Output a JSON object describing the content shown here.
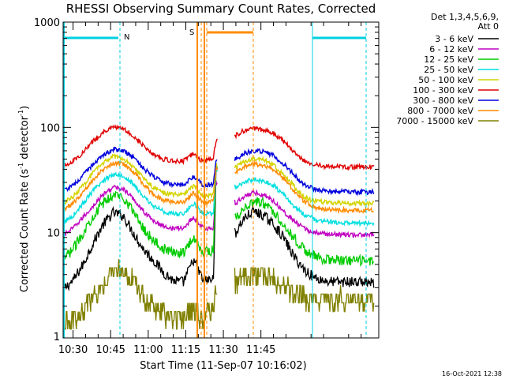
{
  "chart_data": {
    "type": "line",
    "title": "RHESSI Observing Summary Count Rates, Corrected",
    "xlabel": "Start Time (11-Sep-07 10:16:02)",
    "ylabel_main": "Corrected Count Rate (s",
    "ylabel_sup1": "-1",
    "ylabel_mid": " detector",
    "ylabel_sup2": "-1",
    "ylabel_end": ")",
    "y_scale": "log",
    "ylim": [
      1,
      1000
    ],
    "xlim_minutes": [
      10.0,
      136.0
    ],
    "x_tick_labels": [
      "10:30",
      "10:45",
      "11:00",
      "11:15",
      "11:30",
      "11:45"
    ],
    "y_tick_labels": [
      "1",
      "10",
      "100",
      "1000"
    ],
    "legend_header": [
      "Det 1,3,4,5,6,9,",
      "Att 0"
    ],
    "legend_placement": "right",
    "footer_date": "16-Oct-2021 12:38",
    "annotations": {
      "N": "N",
      "S": "S"
    },
    "gaps_minutes": [
      [
        71.5,
        78.5
      ]
    ],
    "series": [
      {
        "name": "3 - 6 keV",
        "color": "#000000",
        "x": [
          10,
          14,
          18,
          22,
          26,
          30,
          34,
          38,
          42,
          46,
          50,
          54,
          58,
          62,
          66,
          70,
          71,
          79,
          82,
          86,
          90,
          94,
          98,
          102,
          106,
          110,
          114,
          118,
          122,
          126,
          130,
          134
        ],
        "y": [
          2.9,
          3.5,
          5.0,
          8.0,
          12.0,
          15.5,
          14.5,
          10.0,
          7.0,
          5.5,
          4.2,
          3.5,
          3.4,
          5.5,
          3.5,
          3.6,
          40.0,
          10.0,
          13.5,
          16.0,
          14.5,
          12.0,
          9.0,
          6.0,
          4.5,
          3.8,
          3.5,
          3.4,
          3.4,
          3.4,
          3.4,
          3.3
        ]
      },
      {
        "name": "6 - 12 keV",
        "color": "#c000c0",
        "x": [
          10,
          14,
          18,
          22,
          26,
          30,
          34,
          38,
          42,
          46,
          50,
          54,
          58,
          62,
          66,
          70,
          71,
          79,
          82,
          86,
          90,
          94,
          98,
          102,
          106,
          110,
          114,
          118,
          122,
          126,
          130,
          134
        ],
        "y": [
          9.5,
          11.0,
          14.0,
          18.0,
          23.0,
          27.0,
          26.0,
          21.0,
          16.0,
          13.0,
          11.5,
          11.0,
          11.0,
          14.0,
          11.0,
          11.0,
          30.0,
          19.0,
          22.0,
          24.0,
          23.0,
          20.0,
          16.0,
          13.0,
          11.0,
          10.0,
          9.8,
          9.6,
          9.6,
          9.5,
          9.5,
          9.5
        ]
      },
      {
        "name": "12 - 25 keV",
        "color": "#00cc00",
        "x": [
          10,
          14,
          18,
          22,
          26,
          30,
          34,
          38,
          42,
          46,
          50,
          54,
          58,
          62,
          66,
          70,
          71,
          79,
          82,
          86,
          90,
          94,
          98,
          102,
          106,
          110,
          114,
          118,
          122,
          126,
          130,
          134
        ],
        "y": [
          5.5,
          7.0,
          10.0,
          14.5,
          19.0,
          23.0,
          22.0,
          16.0,
          11.0,
          8.5,
          7.0,
          6.5,
          6.5,
          9.0,
          6.5,
          6.8,
          45.0,
          14.0,
          17.0,
          20.0,
          19.0,
          16.0,
          12.0,
          9.0,
          7.0,
          6.0,
          5.6,
          5.5,
          5.4,
          5.4,
          5.4,
          5.4
        ]
      },
      {
        "name": "25 - 50 keV",
        "color": "#00e0e0",
        "x": [
          10,
          14,
          18,
          22,
          26,
          30,
          34,
          38,
          42,
          46,
          50,
          54,
          58,
          62,
          66,
          70,
          71,
          79,
          82,
          86,
          90,
          94,
          98,
          102,
          106,
          110,
          114,
          118,
          122,
          126,
          130,
          134
        ],
        "y": [
          12.5,
          14.5,
          19.0,
          25.0,
          31.0,
          36.0,
          35.0,
          29.0,
          22.0,
          18.0,
          16.0,
          15.0,
          15.0,
          19.0,
          15.0,
          15.0,
          40.0,
          27.0,
          30.0,
          32.0,
          31.0,
          28.0,
          23.0,
          18.0,
          15.0,
          13.5,
          12.8,
          12.5,
          12.4,
          12.3,
          12.3,
          12.3
        ]
      },
      {
        "name": "50 - 100 keV",
        "color": "#d4d400",
        "x": [
          10,
          14,
          18,
          22,
          26,
          30,
          34,
          38,
          42,
          46,
          50,
          54,
          58,
          62,
          66,
          70,
          71,
          79,
          82,
          86,
          90,
          94,
          98,
          102,
          106,
          110,
          114,
          118,
          122,
          126,
          130,
          134
        ],
        "y": [
          19.0,
          22.0,
          28.0,
          37.0,
          46.0,
          53.0,
          51.0,
          43.0,
          33.0,
          27.0,
          24.0,
          23.0,
          23.0,
          28.0,
          22.0,
          23.0,
          45.0,
          42.0,
          47.0,
          50.0,
          49.0,
          44.0,
          36.0,
          28.0,
          22.0,
          20.0,
          19.5,
          19.2,
          19.0,
          19.0,
          19.0,
          19.0
        ]
      },
      {
        "name": "100 - 300 keV",
        "color": "#e00000",
        "x": [
          10,
          14,
          18,
          22,
          26,
          30,
          34,
          38,
          42,
          46,
          50,
          54,
          58,
          62,
          66,
          70,
          71,
          79,
          82,
          86,
          90,
          94,
          98,
          102,
          106,
          110,
          114,
          118,
          122,
          126,
          130,
          134
        ],
        "y": [
          43.0,
          48.0,
          58.0,
          74.0,
          90.0,
          100.0,
          97.0,
          84.0,
          67.0,
          56.0,
          50.0,
          48.0,
          48.0,
          56.0,
          47.0,
          52.0,
          75.0,
          84.0,
          93.0,
          97.0,
          95.0,
          88.0,
          74.0,
          59.0,
          49.0,
          44.0,
          43.0,
          42.5,
          42.0,
          42.0,
          42.0,
          42.0
        ]
      },
      {
        "name": "300 - 800 keV",
        "color": "#0000dd",
        "x": [
          10,
          14,
          18,
          22,
          26,
          30,
          34,
          38,
          42,
          46,
          50,
          54,
          58,
          62,
          66,
          70,
          71,
          79,
          82,
          86,
          90,
          94,
          98,
          102,
          106,
          110,
          114,
          118,
          122,
          126,
          130,
          134
        ],
        "y": [
          25.0,
          28.0,
          35.0,
          45.0,
          55.0,
          62.0,
          60.0,
          52.0,
          41.0,
          34.0,
          30.0,
          28.5,
          28.5,
          34.0,
          28.0,
          29.0,
          48.0,
          50.0,
          56.0,
          60.0,
          59.0,
          54.0,
          45.0,
          36.0,
          29.0,
          26.0,
          25.0,
          24.5,
          24.5,
          24.3,
          24.3,
          24.3
        ]
      },
      {
        "name": "800 - 7000 keV",
        "color": "#ff8c00",
        "x": [
          10,
          14,
          18,
          22,
          26,
          30,
          34,
          38,
          42,
          46,
          50,
          54,
          58,
          62,
          66,
          70,
          71,
          79,
          82,
          86,
          90,
          94,
          98,
          102,
          106,
          110,
          114,
          118,
          122,
          126,
          130,
          134
        ],
        "y": [
          16.5,
          19.0,
          24.0,
          32.0,
          40.0,
          46.0,
          45.0,
          38.0,
          29.0,
          23.0,
          20.5,
          19.5,
          19.5,
          24.0,
          19.0,
          20.0,
          40.0,
          37.0,
          42.0,
          45.0,
          44.0,
          40.0,
          33.0,
          25.0,
          20.0,
          17.5,
          16.8,
          16.5,
          16.4,
          16.3,
          16.3,
          16.3
        ]
      },
      {
        "name": "7000 - 15000 keV",
        "color": "#808000",
        "x": [
          10,
          14,
          18,
          22,
          26,
          30,
          34,
          38,
          42,
          46,
          50,
          54,
          58,
          62,
          66,
          70,
          71,
          79,
          82,
          86,
          90,
          94,
          98,
          102,
          106,
          110,
          114,
          118,
          122,
          126,
          130,
          134
        ],
        "y": [
          1.3,
          1.5,
          1.8,
          2.5,
          3.3,
          4.2,
          4.4,
          3.6,
          2.5,
          2.0,
          1.7,
          1.5,
          1.5,
          2.0,
          1.4,
          2.0,
          3.0,
          3.4,
          3.8,
          4.0,
          3.9,
          3.5,
          3.0,
          2.6,
          2.4,
          2.3,
          2.3,
          2.3,
          2.3,
          2.3,
          2.3,
          2.3
        ]
      }
    ]
  }
}
